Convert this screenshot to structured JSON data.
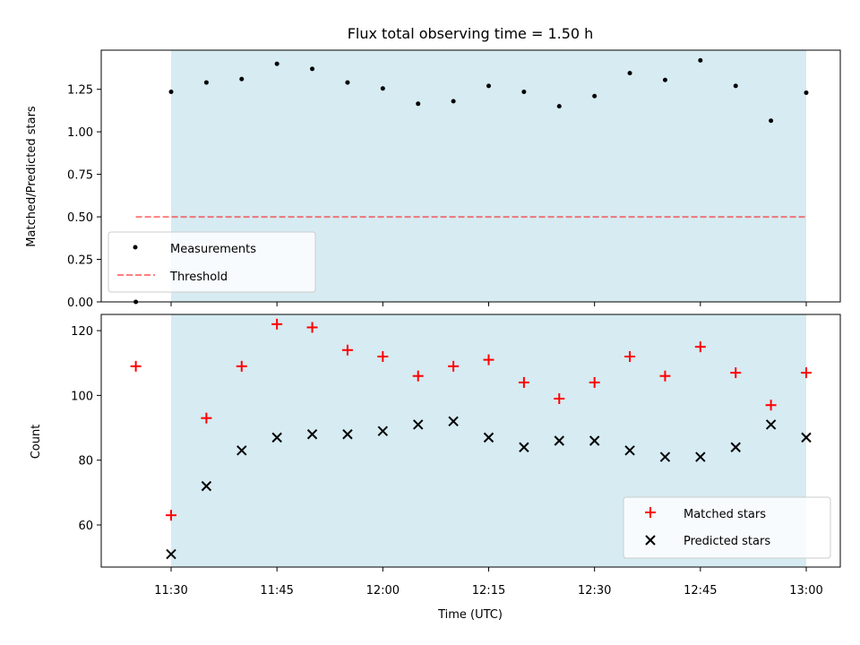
{
  "title": "Flux total observing time = 1.50 h",
  "colors": {
    "observing_span": "#add8e6",
    "measurement": "#000000",
    "threshold": "#ff0000",
    "matched": "#ff0000",
    "predicted": "#000000"
  },
  "chart_data": [
    {
      "type": "scatter",
      "ylabel": "Matched/Predicted stars",
      "ylim": [
        0,
        1.48
      ],
      "yticks": [
        "0.00",
        "0.25",
        "0.50",
        "0.75",
        "1.00",
        "1.25"
      ],
      "observing_span": [
        "11:30",
        "13:00"
      ],
      "x": [
        "11:25",
        "11:30",
        "11:35",
        "11:40",
        "11:45",
        "11:50",
        "11:55",
        "12:00",
        "12:05",
        "12:10",
        "12:15",
        "12:20",
        "12:25",
        "12:30",
        "12:35",
        "12:40",
        "12:45",
        "12:50",
        "12:55",
        "13:00"
      ],
      "series": [
        {
          "name": "Measurements",
          "marker": "dot",
          "values": [
            0.0,
            1.235,
            1.29,
            1.31,
            1.4,
            1.37,
            1.29,
            1.255,
            1.165,
            1.18,
            1.27,
            1.235,
            1.15,
            1.21,
            1.345,
            1.305,
            1.42,
            1.27,
            1.065,
            1.23
          ]
        },
        {
          "name": "Threshold",
          "style": "dashed",
          "x": [
            "11:25",
            "13:00"
          ],
          "values": [
            0.5,
            0.5
          ]
        }
      ],
      "legend": "lower-left"
    },
    {
      "type": "scatter",
      "ylabel": "Count",
      "xlabel": "Time (UTC)",
      "ylim": [
        47,
        125
      ],
      "yticks": [
        "60",
        "80",
        "100",
        "120"
      ],
      "xticks": [
        "11:30",
        "11:45",
        "12:00",
        "12:15",
        "12:30",
        "12:45",
        "13:00"
      ],
      "observing_span": [
        "11:30",
        "13:00"
      ],
      "x": [
        "11:25",
        "11:30",
        "11:35",
        "11:40",
        "11:45",
        "11:50",
        "11:55",
        "12:00",
        "12:05",
        "12:10",
        "12:15",
        "12:20",
        "12:25",
        "12:30",
        "12:35",
        "12:40",
        "12:45",
        "12:50",
        "12:55",
        "13:00"
      ],
      "series": [
        {
          "name": "Matched stars",
          "marker": "plus",
          "x": [
            "11:25",
            "11:30",
            "11:35",
            "11:40",
            "11:45",
            "11:50",
            "11:55",
            "12:00",
            "12:05",
            "12:10",
            "12:15",
            "12:20",
            "12:25",
            "12:30",
            "12:35",
            "12:40",
            "12:45",
            "12:50",
            "12:55",
            "13:00"
          ],
          "values": [
            109,
            63,
            93,
            109,
            122,
            121,
            114,
            112,
            106,
            109,
            111,
            104,
            99,
            104,
            112,
            106,
            115,
            107,
            97,
            107
          ]
        },
        {
          "name": "Predicted stars",
          "marker": "x",
          "x": [
            "11:30",
            "11:35",
            "11:40",
            "11:45",
            "11:50",
            "11:55",
            "12:00",
            "12:05",
            "12:10",
            "12:15",
            "12:20",
            "12:25",
            "12:30",
            "12:35",
            "12:40",
            "12:45",
            "12:50",
            "12:55",
            "13:00"
          ],
          "values": [
            51,
            72,
            83,
            87,
            88,
            88,
            89,
            91,
            92,
            87,
            84,
            86,
            86,
            83,
            81,
            81,
            84,
            91,
            87
          ]
        }
      ],
      "legend": "lower-right"
    }
  ]
}
